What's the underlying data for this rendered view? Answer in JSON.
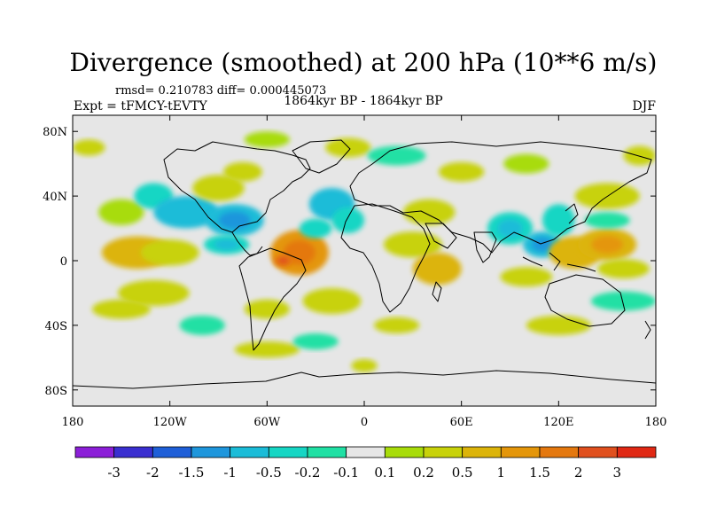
{
  "chart_data": {
    "type": "heatmap",
    "title": "Divergence (smoothed) at 200 hPa (10**6 m/s)",
    "stats": "rmsd= 0.210783 diff= 0.000445073",
    "left_label": "Expt = tFMCY-tEVTY",
    "center_label": "1864kyr BP - 1864kyr BP",
    "right_label": "DJF",
    "xlim": [
      -180,
      180
    ],
    "ylim": [
      -90,
      90
    ],
    "x_ticks": [
      {
        "value": -180,
        "label": "180"
      },
      {
        "value": -120,
        "label": "120W"
      },
      {
        "value": -60,
        "label": "60W"
      },
      {
        "value": 0,
        "label": "0"
      },
      {
        "value": 60,
        "label": "60E"
      },
      {
        "value": 120,
        "label": "120E"
      },
      {
        "value": 180,
        "label": "180"
      }
    ],
    "y_ticks": [
      {
        "value": 80,
        "label": "80N"
      },
      {
        "value": 40,
        "label": "40N"
      },
      {
        "value": 0,
        "label": "0"
      },
      {
        "value": -40,
        "label": "40S"
      },
      {
        "value": -80,
        "label": "80S"
      }
    ],
    "colorbar": {
      "colors": [
        "#8c1fd8",
        "#3a2fd0",
        "#1f5fd8",
        "#1e96dc",
        "#1bbcd8",
        "#16d6c4",
        "#20e0a4",
        "#e6e6e6",
        "#a8dc0a",
        "#c8d20a",
        "#dcb40a",
        "#e4960a",
        "#e4780f",
        "#e0501e",
        "#e02814"
      ],
      "labels": [
        "-3",
        "-2",
        "-1.5",
        "-1",
        "-0.5",
        "-0.2",
        "-0.1",
        "0.1",
        "0.2",
        "0.5",
        "1",
        "1.5",
        "2",
        "3"
      ]
    },
    "anomalies": [
      {
        "lon": -140,
        "lat": 5,
        "rlon": 22,
        "rlat": 10,
        "value": 0.6
      },
      {
        "lon": -120,
        "lat": 5,
        "rlon": 18,
        "rlat": 8,
        "value": 0.3
      },
      {
        "lon": -150,
        "lat": 30,
        "rlon": 14,
        "rlat": 8,
        "value": 0.15
      },
      {
        "lon": -130,
        "lat": -20,
        "rlon": 22,
        "rlat": 8,
        "value": 0.3
      },
      {
        "lon": -150,
        "lat": -30,
        "rlon": 18,
        "rlat": 6,
        "value": 0.2
      },
      {
        "lon": -130,
        "lat": 40,
        "rlon": 12,
        "rlat": 8,
        "value": -0.4
      },
      {
        "lon": -110,
        "lat": 30,
        "rlon": 20,
        "rlat": 10,
        "value": -0.6
      },
      {
        "lon": -80,
        "lat": 25,
        "rlon": 18,
        "rlat": 10,
        "value": -0.9
      },
      {
        "lon": -85,
        "lat": 10,
        "rlon": 14,
        "rlat": 6,
        "value": -0.5
      },
      {
        "lon": -90,
        "lat": 45,
        "rlon": 16,
        "rlat": 8,
        "value": 0.3
      },
      {
        "lon": -75,
        "lat": 55,
        "rlon": 12,
        "rlat": 6,
        "value": 0.2
      },
      {
        "lon": -40,
        "lat": 5,
        "rlon": 18,
        "rlat": 14,
        "value": 1.0
      },
      {
        "lon": -50,
        "lat": 0,
        "rlon": 6,
        "rlat": 4,
        "value": 1.6
      },
      {
        "lon": -20,
        "lat": 35,
        "rlon": 14,
        "rlat": 10,
        "value": -0.6
      },
      {
        "lon": -30,
        "lat": 20,
        "rlon": 10,
        "rlat": 6,
        "value": -0.4
      },
      {
        "lon": -10,
        "lat": 25,
        "rlon": 10,
        "rlat": 8,
        "value": -0.3
      },
      {
        "lon": -20,
        "lat": -25,
        "rlon": 18,
        "rlat": 8,
        "value": 0.3
      },
      {
        "lon": -60,
        "lat": -30,
        "rlon": 14,
        "rlat": 6,
        "value": 0.25
      },
      {
        "lon": -60,
        "lat": -55,
        "rlon": 20,
        "rlat": 5,
        "value": 0.2
      },
      {
        "lon": -100,
        "lat": -40,
        "rlon": 14,
        "rlat": 6,
        "value": -0.2
      },
      {
        "lon": -30,
        "lat": -50,
        "rlon": 14,
        "rlat": 5,
        "value": -0.2
      },
      {
        "lon": 30,
        "lat": 10,
        "rlon": 18,
        "rlat": 8,
        "value": 0.4
      },
      {
        "lon": 45,
        "lat": -5,
        "rlon": 15,
        "rlat": 10,
        "value": 0.5
      },
      {
        "lon": 40,
        "lat": 30,
        "rlon": 16,
        "rlat": 8,
        "value": 0.2
      },
      {
        "lon": 90,
        "lat": 20,
        "rlon": 14,
        "rlat": 10,
        "value": -0.5
      },
      {
        "lon": 110,
        "lat": 10,
        "rlon": 12,
        "rlat": 8,
        "value": -0.8
      },
      {
        "lon": 120,
        "lat": 25,
        "rlon": 10,
        "rlat": 10,
        "value": -0.4
      },
      {
        "lon": 130,
        "lat": 5,
        "rlon": 16,
        "rlat": 10,
        "value": 0.5
      },
      {
        "lon": 150,
        "lat": 10,
        "rlon": 18,
        "rlat": 10,
        "value": 0.8
      },
      {
        "lon": 160,
        "lat": -5,
        "rlon": 16,
        "rlat": 6,
        "value": 0.4
      },
      {
        "lon": 100,
        "lat": -10,
        "rlon": 16,
        "rlat": 6,
        "value": 0.3
      },
      {
        "lon": 150,
        "lat": 40,
        "rlon": 20,
        "rlat": 8,
        "value": 0.3
      },
      {
        "lon": 150,
        "lat": 25,
        "rlon": 14,
        "rlat": 5,
        "value": -0.2
      },
      {
        "lon": 160,
        "lat": -25,
        "rlon": 20,
        "rlat": 6,
        "value": -0.2
      },
      {
        "lon": 120,
        "lat": -40,
        "rlon": 20,
        "rlat": 6,
        "value": 0.2
      },
      {
        "lon": 20,
        "lat": -40,
        "rlon": 14,
        "rlat": 5,
        "value": 0.2
      },
      {
        "lon": 0,
        "lat": -65,
        "rlon": 8,
        "rlat": 4,
        "value": 0.2
      },
      {
        "lon": -10,
        "lat": 70,
        "rlon": 14,
        "rlat": 6,
        "value": 0.2
      },
      {
        "lon": -60,
        "lat": 75,
        "rlon": 14,
        "rlat": 5,
        "value": 0.15
      },
      {
        "lon": 20,
        "lat": 65,
        "rlon": 18,
        "rlat": 6,
        "value": -0.2
      },
      {
        "lon": 60,
        "lat": 55,
        "rlon": 14,
        "rlat": 6,
        "value": 0.2
      },
      {
        "lon": 100,
        "lat": 60,
        "rlon": 14,
        "rlat": 6,
        "value": 0.15
      },
      {
        "lon": 170,
        "lat": 65,
        "rlon": 10,
        "rlat": 6,
        "value": 0.2
      },
      {
        "lon": -170,
        "lat": 70,
        "rlon": 10,
        "rlat": 5,
        "value": 0.2
      }
    ]
  }
}
